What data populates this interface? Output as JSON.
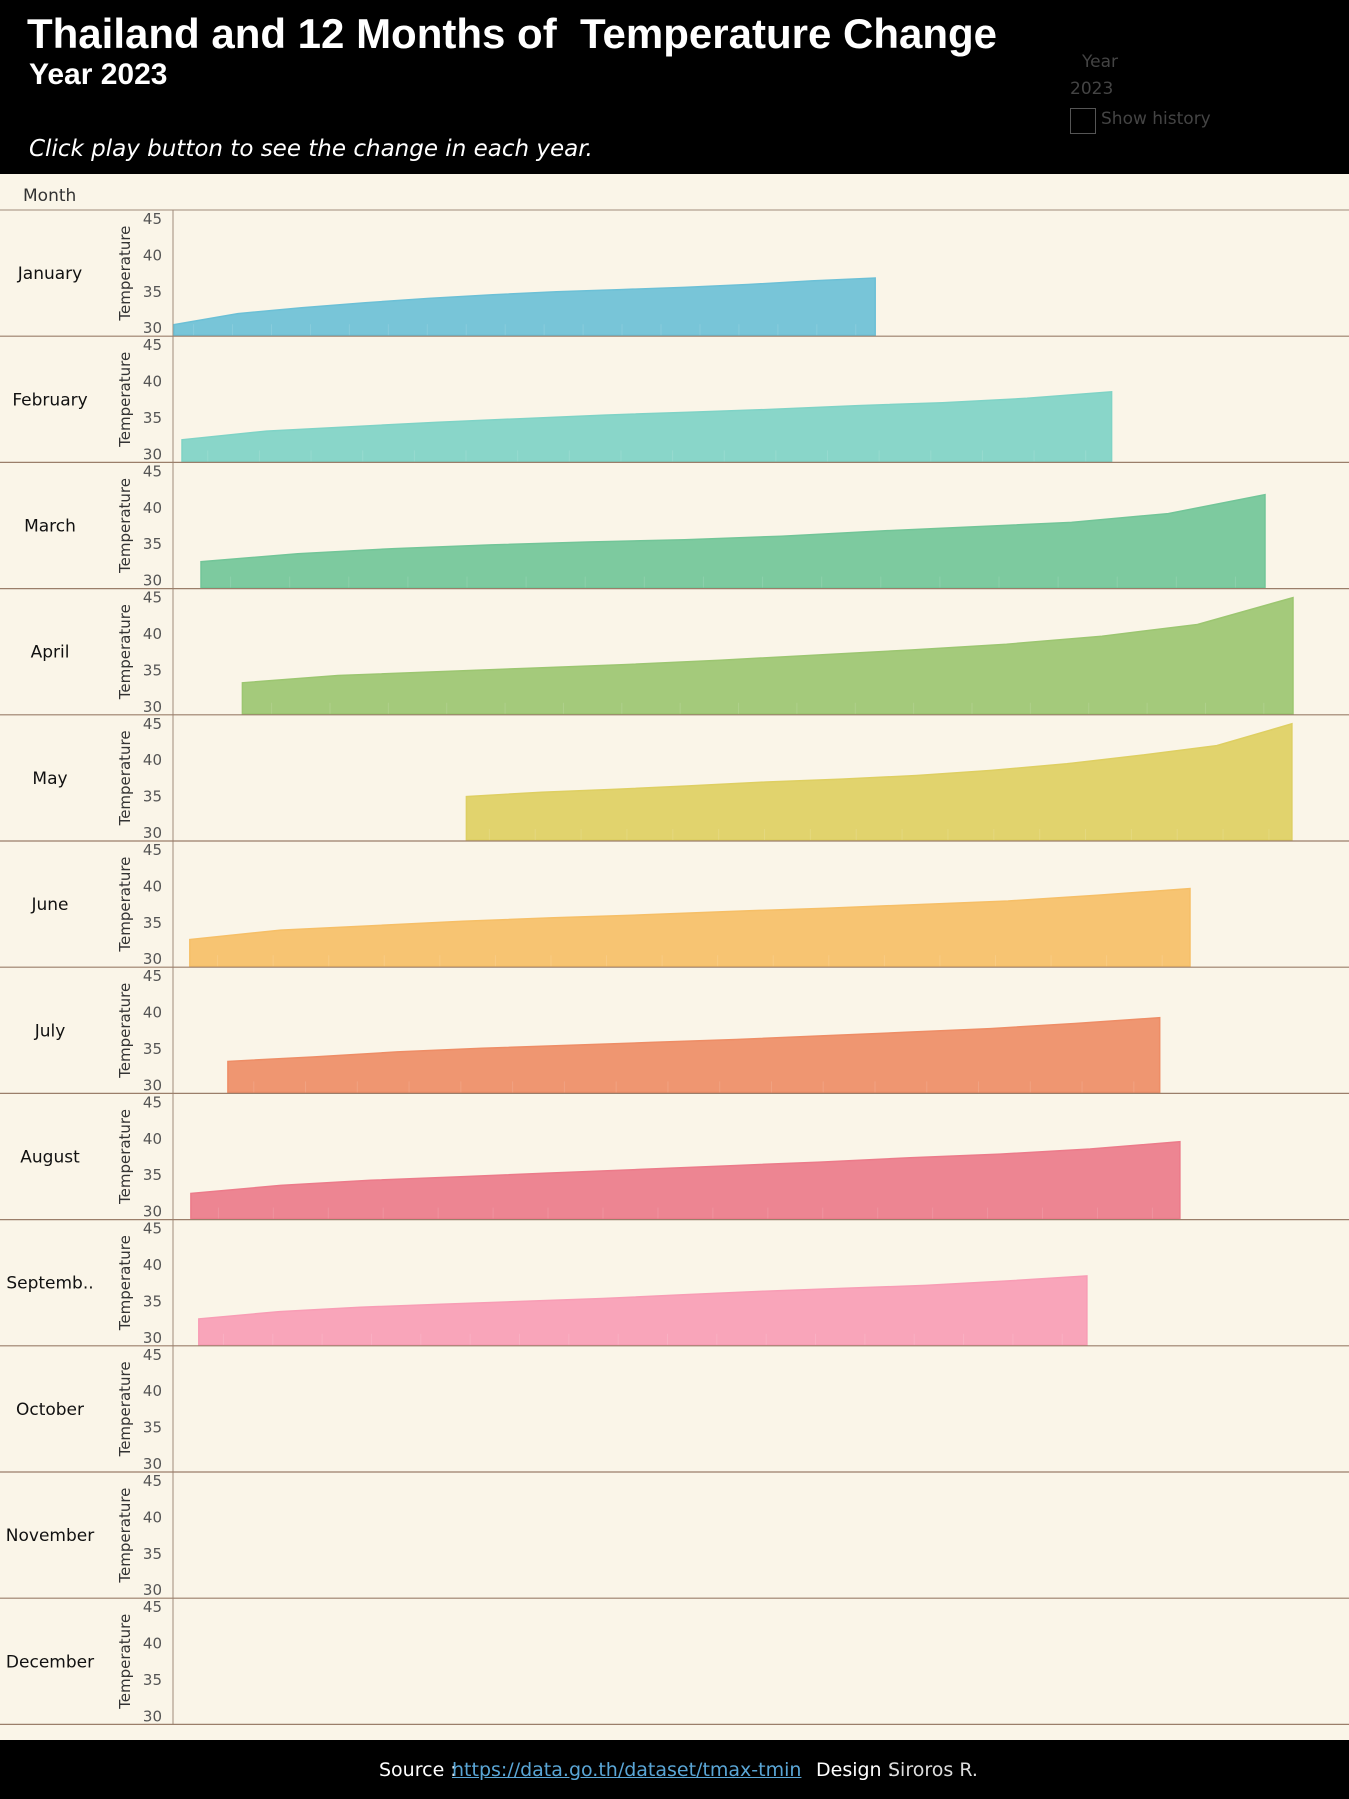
{
  "header": {
    "title": "Thailand and 12 Months of  Temperature Change",
    "subtitle": "Year 2023",
    "instruction": "Click play button to see the change in each year.",
    "year_filter_label": "Year",
    "year_filter_value": "2023",
    "show_history_label": "Show history"
  },
  "month_column_header": "Month",
  "footer": {
    "source_prefix": "Source :",
    "source_link": "https://data.go.th/dataset/tmax-tmin",
    "design_prefix": "Design :",
    "design_name": "Siroros R."
  },
  "chart_data": {
    "type": "area",
    "title": "Thailand and 12 Months of  Temperature Change",
    "ylabel": "Temperature",
    "ylim": [
      30,
      45
    ],
    "yticks": [
      30,
      35,
      40,
      45
    ],
    "rows": [
      {
        "label": "January",
        "color": "#6cc0d6",
        "start": 0.001,
        "end": 0.627,
        "values": [
          30.5,
          32.0,
          32.8,
          33.5,
          34.1,
          34.6,
          35.0,
          35.3,
          35.6,
          36.0,
          36.5,
          36.9
        ]
      },
      {
        "label": "February",
        "color": "#7fd3c6",
        "start": 0.008,
        "end": 0.838,
        "values": [
          32.0,
          33.2,
          33.8,
          34.4,
          34.9,
          35.4,
          35.8,
          36.2,
          36.7,
          37.1,
          37.7,
          38.6
        ]
      },
      {
        "label": "March",
        "color": "#72c598",
        "start": 0.025,
        "end": 0.975,
        "values": [
          32.6,
          33.7,
          34.4,
          34.9,
          35.3,
          35.6,
          36.1,
          36.8,
          37.4,
          38.0,
          39.2,
          41.8
        ]
      },
      {
        "label": "April",
        "color": "#9cc671",
        "start": 0.062,
        "end": 1.0,
        "values": [
          33.3,
          34.3,
          34.8,
          35.3,
          35.8,
          36.4,
          37.1,
          37.8,
          38.6,
          39.7,
          41.3,
          45.0
        ]
      },
      {
        "label": "May",
        "color": "#decf62",
        "start": 0.262,
        "end": 0.999,
        "values": [
          35.0,
          35.6,
          36.0,
          36.5,
          37.0,
          37.4,
          37.9,
          38.6,
          39.5,
          40.7,
          42.0,
          45.0
        ]
      },
      {
        "label": "June",
        "color": "#f6bf67",
        "start": 0.015,
        "end": 0.908,
        "values": [
          32.7,
          34.0,
          34.6,
          35.2,
          35.7,
          36.1,
          36.6,
          37.0,
          37.5,
          38.0,
          38.8,
          39.7
        ]
      },
      {
        "label": "July",
        "color": "#ee8d66",
        "start": 0.049,
        "end": 0.881,
        "values": [
          33.3,
          33.9,
          34.6,
          35.1,
          35.5,
          35.9,
          36.3,
          36.8,
          37.3,
          37.8,
          38.5,
          39.3
        ]
      },
      {
        "label": "August",
        "color": "#ec7b8a",
        "start": 0.016,
        "end": 0.899,
        "values": [
          32.5,
          33.6,
          34.3,
          34.8,
          35.3,
          35.8,
          36.3,
          36.8,
          37.4,
          37.9,
          38.6,
          39.6
        ]
      },
      {
        "label": "Septemb..",
        "color": "#f89db5",
        "start": 0.023,
        "end": 0.816,
        "values": [
          32.6,
          33.6,
          34.2,
          34.6,
          35.0,
          35.4,
          35.9,
          36.4,
          36.8,
          37.2,
          37.8,
          38.5
        ]
      },
      {
        "label": "October",
        "color": "#9e9e9e",
        "start": null,
        "end": null,
        "values": []
      },
      {
        "label": "November",
        "color": "#9e9e9e",
        "start": null,
        "end": null,
        "values": []
      },
      {
        "label": "December",
        "color": "#9e9e9e",
        "start": null,
        "end": null,
        "values": []
      }
    ]
  }
}
